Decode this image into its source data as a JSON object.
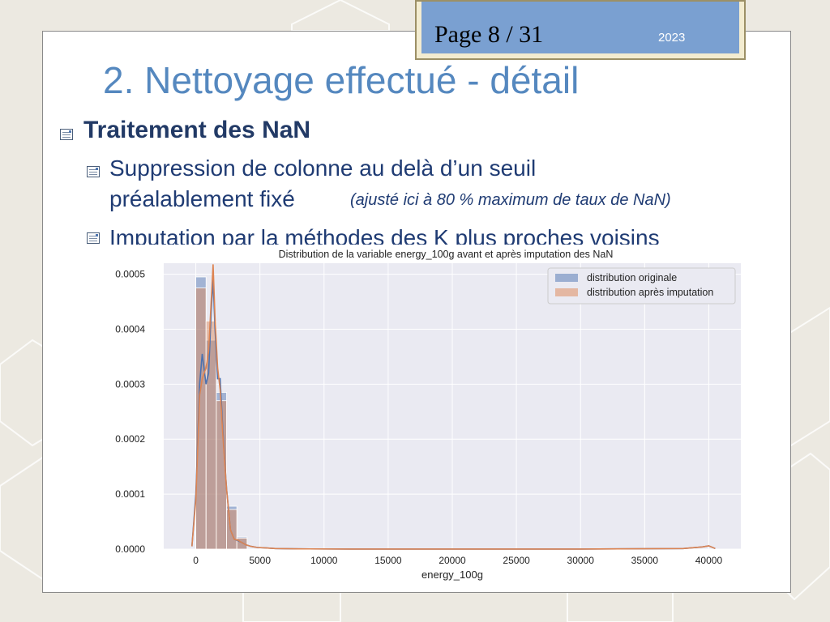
{
  "header": {
    "page": "Page 8 / 31",
    "year": "2023"
  },
  "title": "2. Nettoyage effectué - détail",
  "bullets": {
    "b1": "Traitement des NaN",
    "b2_line1": "Suppression de colonne au delà d’un seuil",
    "b2_line2": "préalablement fixé",
    "b2_note": "(ajusté ici à 80 % maximum de taux de NaN)",
    "b3": "Imputation par la méthodes des K plus proches voisins"
  },
  "colors": {
    "title": "#5588bf",
    "text": "#1f3b73",
    "series_original": "#4c72b0",
    "series_imputed": "#dd8452",
    "plot_bg": "#eaeaf2"
  },
  "chart_data": {
    "type": "bar",
    "title": "Distribution de la variable energy_100g avant et après imputation des NaN",
    "xlabel": "energy_100g",
    "ylabel": "",
    "xlim": [
      -2500,
      42500
    ],
    "ylim": [
      0,
      0.00052
    ],
    "grid": true,
    "legend_position": "top-right",
    "xticks": [
      0,
      5000,
      10000,
      15000,
      20000,
      25000,
      30000,
      35000,
      40000
    ],
    "xtick_labels": [
      "0",
      "5000",
      "10000",
      "15000",
      "20000",
      "25000",
      "30000",
      "35000",
      "40000"
    ],
    "yticks": [
      0,
      0.0001,
      0.0002,
      0.0003,
      0.0004,
      0.0005
    ],
    "ytick_labels": [
      "0.0000",
      "0.0001",
      "0.0002",
      "0.0003",
      "0.0004",
      "0.0005"
    ],
    "bin_edges": [
      0,
      800,
      1600,
      2400,
      3200,
      4000
    ],
    "series": [
      {
        "name": "distribution originale",
        "bars": [
          0.000495,
          0.00038,
          0.000285,
          7.8e-05,
          2.2e-05
        ],
        "kde_x": [
          -300,
          0,
          300,
          500,
          800,
          1000,
          1200,
          1350,
          1500,
          1700,
          1900,
          2100,
          2400,
          2700,
          3000,
          3300,
          3600,
          3900,
          4300,
          4800,
          5500,
          6200,
          8000,
          12000,
          20000,
          30000,
          38000,
          39500,
          40000,
          40500
        ],
        "kde_y": [
          5e-06,
          0.0001,
          0.0003,
          0.000355,
          0.0003,
          0.00032,
          0.00043,
          0.00049,
          0.0004,
          0.00031,
          0.00031,
          0.00022,
          0.00011,
          3.5e-05,
          1.8e-05,
          1.5e-05,
          1.2e-05,
          8e-06,
          5e-06,
          3e-06,
          2e-06,
          1e-06,
          5e-07,
          2e-07,
          1e-07,
          1e-07,
          1e-06,
          4e-06,
          6e-06,
          1e-06
        ]
      },
      {
        "name": "distribution après imputation",
        "bars": [
          0.000475,
          0.000415,
          0.00027,
          7.2e-05,
          2e-05
        ],
        "kde_x": [
          -300,
          0,
          300,
          500,
          800,
          1000,
          1200,
          1350,
          1500,
          1700,
          1900,
          2100,
          2400,
          2700,
          3000,
          3300,
          3600,
          3900,
          4300,
          4800,
          5500,
          6200,
          8000,
          12000,
          20000,
          30000,
          38000,
          39500,
          40000,
          40500
        ],
        "kde_y": [
          5e-06,
          9e-05,
          0.00028,
          0.00031,
          0.00033,
          0.00036,
          0.00045,
          0.000518,
          0.00042,
          0.00033,
          0.00029,
          0.00021,
          0.00011,
          3.5e-05,
          1.8e-05,
          1.6e-05,
          1.2e-05,
          8e-06,
          5e-06,
          3e-06,
          2e-06,
          1e-06,
          5e-07,
          2e-07,
          1e-07,
          1e-07,
          1e-06,
          4e-06,
          6e-06,
          1e-06
        ]
      }
    ]
  }
}
